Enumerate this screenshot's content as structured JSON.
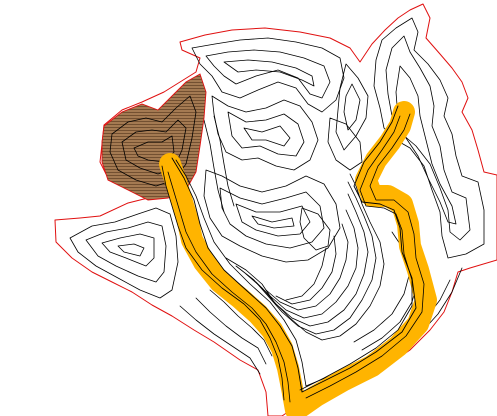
{
  "map": {
    "colors": {
      "background": "#ffffff",
      "contour": "#000000",
      "boundary": "#e01010",
      "route_fill": "#ffb400",
      "route_contour": "#000000",
      "zone_fill": "#a47a52",
      "zone_hatch": "#5e3e22",
      "zone_edge": "#e01010"
    },
    "features": [
      "map-boundary",
      "contour-lines",
      "highlighted-route",
      "hatched-zone"
    ]
  }
}
